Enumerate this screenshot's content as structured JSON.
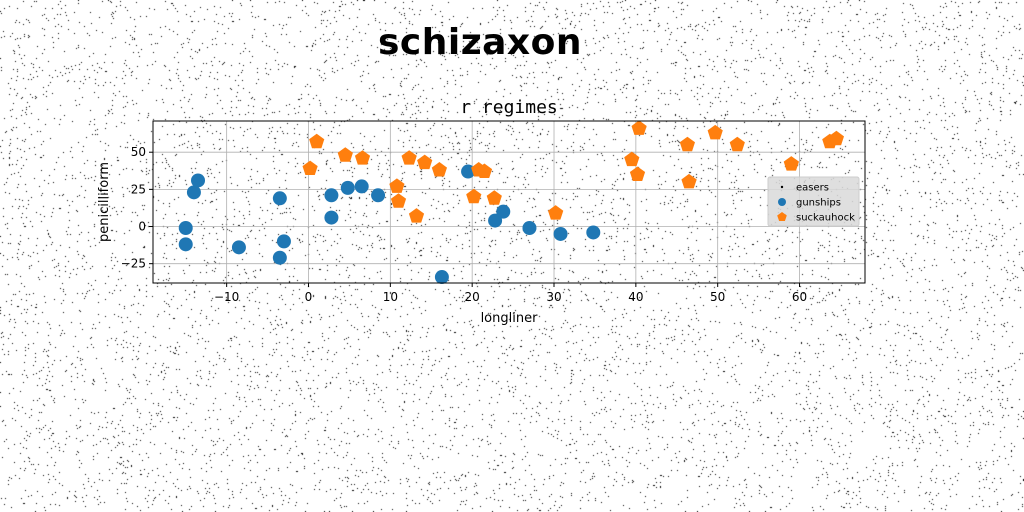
{
  "page": {
    "title": "schizaxon"
  },
  "colors": {
    "series_1": "#1f77b4",
    "series_2": "#ff7f0e",
    "grid": "#b0b0b0",
    "legend_bg": "#d9d9d9",
    "noise": "#000000"
  },
  "chart_data": {
    "type": "scatter",
    "title": "r regimes",
    "xlabel": "longliner",
    "ylabel": "penicilliform",
    "xlim": [
      -19,
      68
    ],
    "ylim": [
      -38,
      71
    ],
    "xticks": [
      -10,
      0,
      10,
      20,
      30,
      40,
      50,
      60
    ],
    "yticks": [
      -25,
      0,
      25,
      50
    ],
    "x_tick_labels": [
      "−10",
      "0",
      "10",
      "20",
      "30",
      "40",
      "50",
      "60"
    ],
    "y_tick_labels": [
      "−25",
      "0",
      "25",
      "50"
    ],
    "grid": true,
    "legend_position": "center-right",
    "legend_labels": [
      "easers",
      "gunships",
      "suckauhock"
    ],
    "series": [
      {
        "name": "gunships",
        "marker": "circle",
        "color": "#1f77b4",
        "points": [
          [
            -15,
            -1
          ],
          [
            -15,
            -12
          ],
          [
            -14,
            23
          ],
          [
            -13.5,
            31
          ],
          [
            -8.5,
            -14
          ],
          [
            -3.5,
            19
          ],
          [
            -3.5,
            -21
          ],
          [
            -3,
            -10
          ],
          [
            2.8,
            21
          ],
          [
            2.8,
            6
          ],
          [
            4.8,
            26
          ],
          [
            6.5,
            27
          ],
          [
            8.5,
            21
          ],
          [
            16.3,
            -34
          ],
          [
            19.5,
            37
          ],
          [
            22.8,
            4
          ],
          [
            23.8,
            10
          ],
          [
            27,
            -1
          ],
          [
            30.8,
            -5
          ],
          [
            34.8,
            -4
          ]
        ]
      },
      {
        "name": "suckauhock",
        "marker": "pentagon",
        "color": "#ff7f0e",
        "points": [
          [
            0.2,
            39
          ],
          [
            1,
            57
          ],
          [
            4.5,
            48
          ],
          [
            6.6,
            46
          ],
          [
            10.8,
            27
          ],
          [
            11,
            17
          ],
          [
            12.3,
            46
          ],
          [
            13.2,
            7
          ],
          [
            14.2,
            43
          ],
          [
            16,
            38
          ],
          [
            20.2,
            20
          ],
          [
            20.8,
            38
          ],
          [
            21.5,
            37
          ],
          [
            22.7,
            19
          ],
          [
            30.2,
            9
          ],
          [
            39.5,
            45
          ],
          [
            40.2,
            35
          ],
          [
            40.4,
            66
          ],
          [
            46.3,
            55
          ],
          [
            46.5,
            30
          ],
          [
            49.7,
            63
          ],
          [
            52.4,
            55
          ],
          [
            59,
            42
          ],
          [
            63.7,
            57
          ],
          [
            64.5,
            59
          ]
        ]
      }
    ]
  }
}
